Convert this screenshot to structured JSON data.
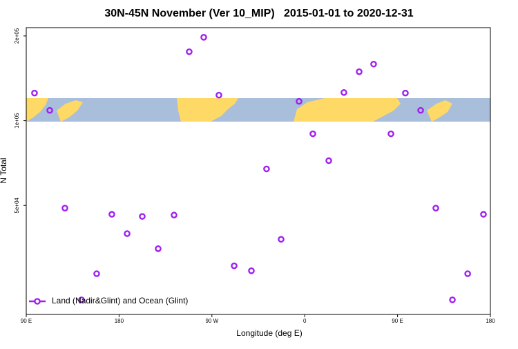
{
  "chart_data": {
    "type": "scatter",
    "title": "30N-45N November (Ver 10_MIP)   2015-01-01 to 2020-12-31",
    "x_label": "Longitude (deg E)",
    "y_label": "N Total",
    "x": [
      98,
      112.8,
      127.5,
      143.6,
      158.3,
      173,
      187.8,
      202.5,
      217.9,
      233.3,
      248,
      262.1,
      276.8,
      291.6,
      308.3,
      323,
      337.1,
      354.5,
      367.9,
      383.3,
      398,
      412.8,
      426.8,
      443.6,
      457.6,
      472.4,
      487.1,
      503.2,
      518,
      533.3
    ],
    "series": [
      {
        "name": "Land (Nadir&Glint) and Ocean (Glint)",
        "color": "#a020f0",
        "values": [
          125300,
          108800,
          48900,
          23100,
          28600,
          46500,
          39700,
          45700,
          35100,
          46200,
          175700,
          197800,
          123200,
          30500,
          29300,
          67400,
          37900,
          117100,
          89800,
          72100,
          125900,
          149200,
          158800,
          89800,
          125300,
          108800,
          48900,
          23100,
          28600,
          46500
        ]
      }
    ],
    "xlim": [
      90,
      540
    ],
    "xticks": [
      {
        "value": 90,
        "label": "90 E"
      },
      {
        "value": 180,
        "label": "180"
      },
      {
        "value": 270,
        "label": "90 W"
      },
      {
        "value": 360,
        "label": "0"
      },
      {
        "value": 450,
        "label": "90 E"
      },
      {
        "value": 540,
        "label": "180"
      }
    ],
    "ylim": [
      20500,
      214000
    ],
    "ylog": true,
    "yticks": [
      {
        "value": 50000,
        "label": "5e+04"
      },
      {
        "value": 100000,
        "label": "1e+05"
      },
      {
        "value": 200000,
        "label": "2e+05"
      }
    ],
    "legend": "bottom-left"
  }
}
